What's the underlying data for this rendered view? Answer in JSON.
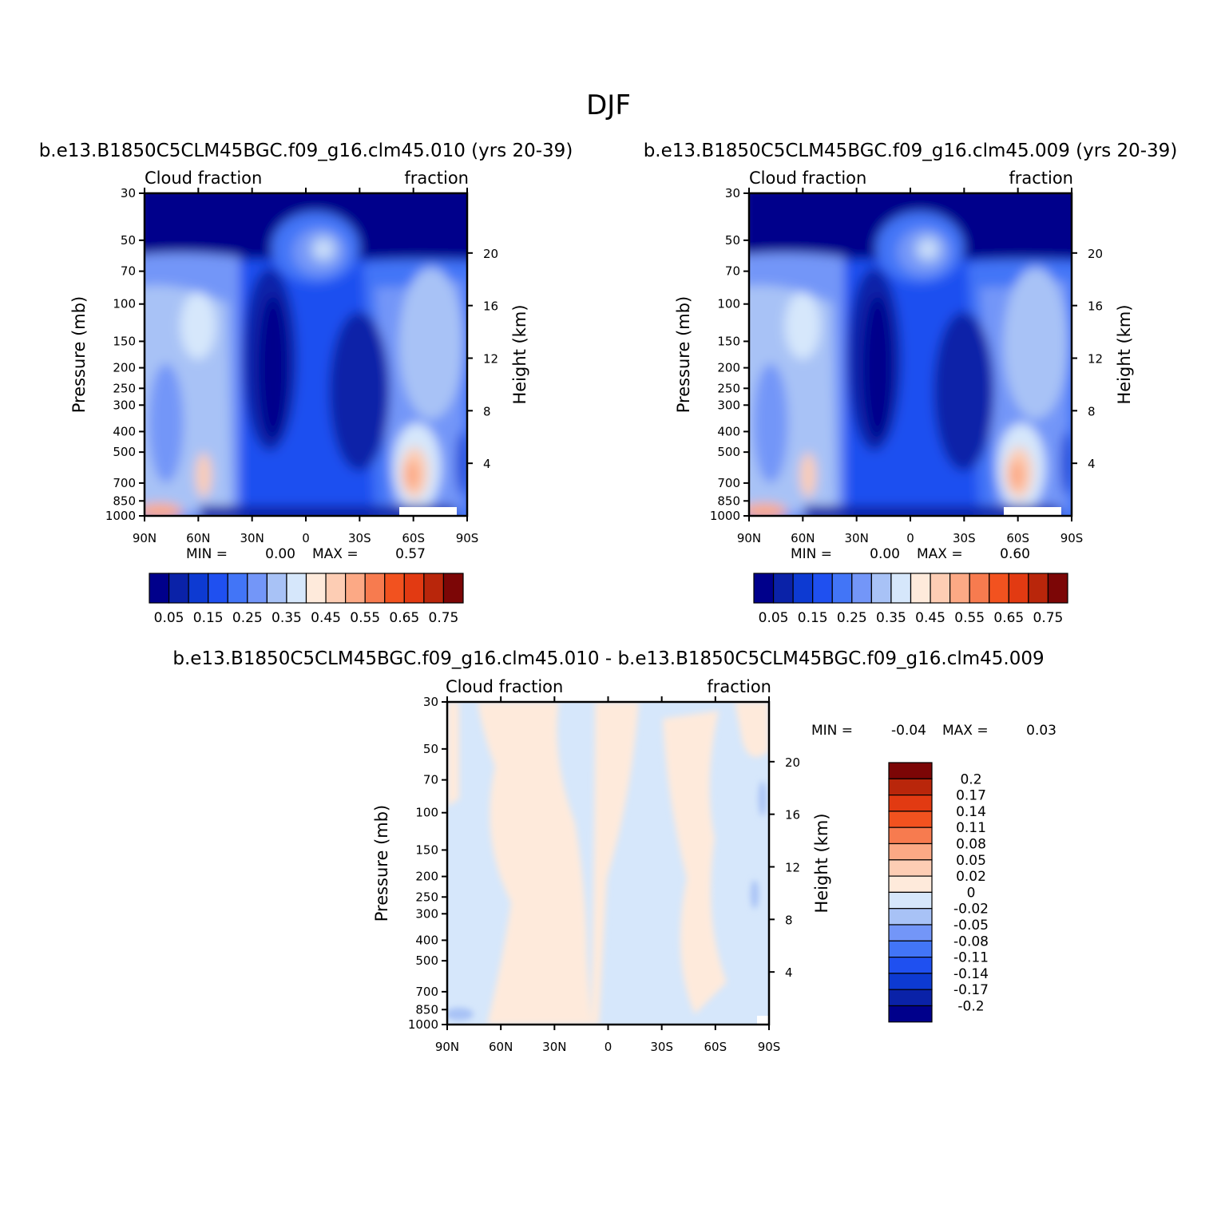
{
  "figure": {
    "title": "DJF",
    "diff_title": "b.e13.B1850C5CLM45BGC.f09_g16.clm45.010 - b.e13.B1850C5CLM45BGC.f09_g16.clm45.009"
  },
  "colors": {
    "seq_palette": [
      "#00008b",
      "#0a22a8",
      "#0d3ad2",
      "#1f50f0",
      "#4275f7",
      "#7396f8",
      "#a8c2f6",
      "#d6e7fb",
      "#feeadb",
      "#fdcdb4",
      "#fca985",
      "#f77b4f",
      "#f2521f",
      "#e23a12",
      "#b9260b",
      "#7c0606"
    ],
    "div_palette": [
      "#00008b",
      "#0a22a8",
      "#0d3ad2",
      "#1f50f0",
      "#4275f7",
      "#7396f8",
      "#a8c2f6",
      "#d6e7fb",
      "#feeadb",
      "#fdcdb4",
      "#fca985",
      "#f77b4f",
      "#f2521f",
      "#e23a12",
      "#b9260b",
      "#7c0606"
    ]
  },
  "chart_data": [
    {
      "type": "heatmap",
      "subtitle": "b.e13.B1850C5CLM45BGC.f09_g16.clm45.010 (yrs 20-39)",
      "left_label": "Cloud fraction",
      "right_label": "fraction",
      "ylabel": "Pressure (mb)",
      "y2label": "Height (km)",
      "x_ticks": [
        "90N",
        "60N",
        "30N",
        "0",
        "30S",
        "60S",
        "90S"
      ],
      "x_range": [
        90,
        -90
      ],
      "y_ticks": [
        30,
        50,
        70,
        100,
        150,
        200,
        250,
        300,
        400,
        500,
        700,
        850,
        1000
      ],
      "y_range": [
        30,
        1000
      ],
      "y_scale": "log",
      "height_ticks": [
        20,
        16,
        12,
        8,
        4
      ],
      "min_label": "MIN =",
      "min_value": "0.00",
      "max_label": "MAX =",
      "max_value": "0.57",
      "levels": [
        "0.05",
        "0.15",
        "0.25",
        "0.35",
        "0.45",
        "0.55",
        "0.65",
        "0.75"
      ],
      "colorbar": "horizontal"
    },
    {
      "type": "heatmap",
      "subtitle": "b.e13.B1850C5CLM45BGC.f09_g16.clm45.009 (yrs 20-39)",
      "left_label": "Cloud fraction",
      "right_label": "fraction",
      "ylabel": "Pressure (mb)",
      "y2label": "Height (km)",
      "x_ticks": [
        "90N",
        "60N",
        "30N",
        "0",
        "30S",
        "60S",
        "90S"
      ],
      "x_range": [
        90,
        -90
      ],
      "y_ticks": [
        30,
        50,
        70,
        100,
        150,
        200,
        250,
        300,
        400,
        500,
        700,
        850,
        1000
      ],
      "y_range": [
        30,
        1000
      ],
      "y_scale": "log",
      "height_ticks": [
        20,
        16,
        12,
        8,
        4
      ],
      "min_label": "MIN =",
      "min_value": "0.00",
      "max_label": "MAX =",
      "max_value": "0.60",
      "levels": [
        "0.05",
        "0.15",
        "0.25",
        "0.35",
        "0.45",
        "0.55",
        "0.65",
        "0.75"
      ],
      "colorbar": "horizontal"
    },
    {
      "type": "heatmap",
      "left_label": "Cloud fraction",
      "right_label": "fraction",
      "ylabel": "Pressure (mb)",
      "y2label": "Height (km)",
      "x_ticks": [
        "90N",
        "60N",
        "30N",
        "0",
        "30S",
        "60S",
        "90S"
      ],
      "x_range": [
        90,
        -90
      ],
      "y_ticks": [
        30,
        50,
        70,
        100,
        150,
        200,
        250,
        300,
        400,
        500,
        700,
        850,
        1000
      ],
      "y_range": [
        30,
        1000
      ],
      "y_scale": "log",
      "height_ticks": [
        20,
        16,
        12,
        8,
        4
      ],
      "min_label": "MIN =",
      "min_value": "-0.04",
      "max_label": "MAX =",
      "max_value": "0.03",
      "levels": [
        "0.2",
        "0.17",
        "0.14",
        "0.11",
        "0.08",
        "0.05",
        "0.02",
        "0",
        "-0.02",
        "-0.05",
        "-0.08",
        "-0.11",
        "-0.14",
        "-0.17",
        "-0.2"
      ],
      "colorbar": "vertical"
    }
  ]
}
